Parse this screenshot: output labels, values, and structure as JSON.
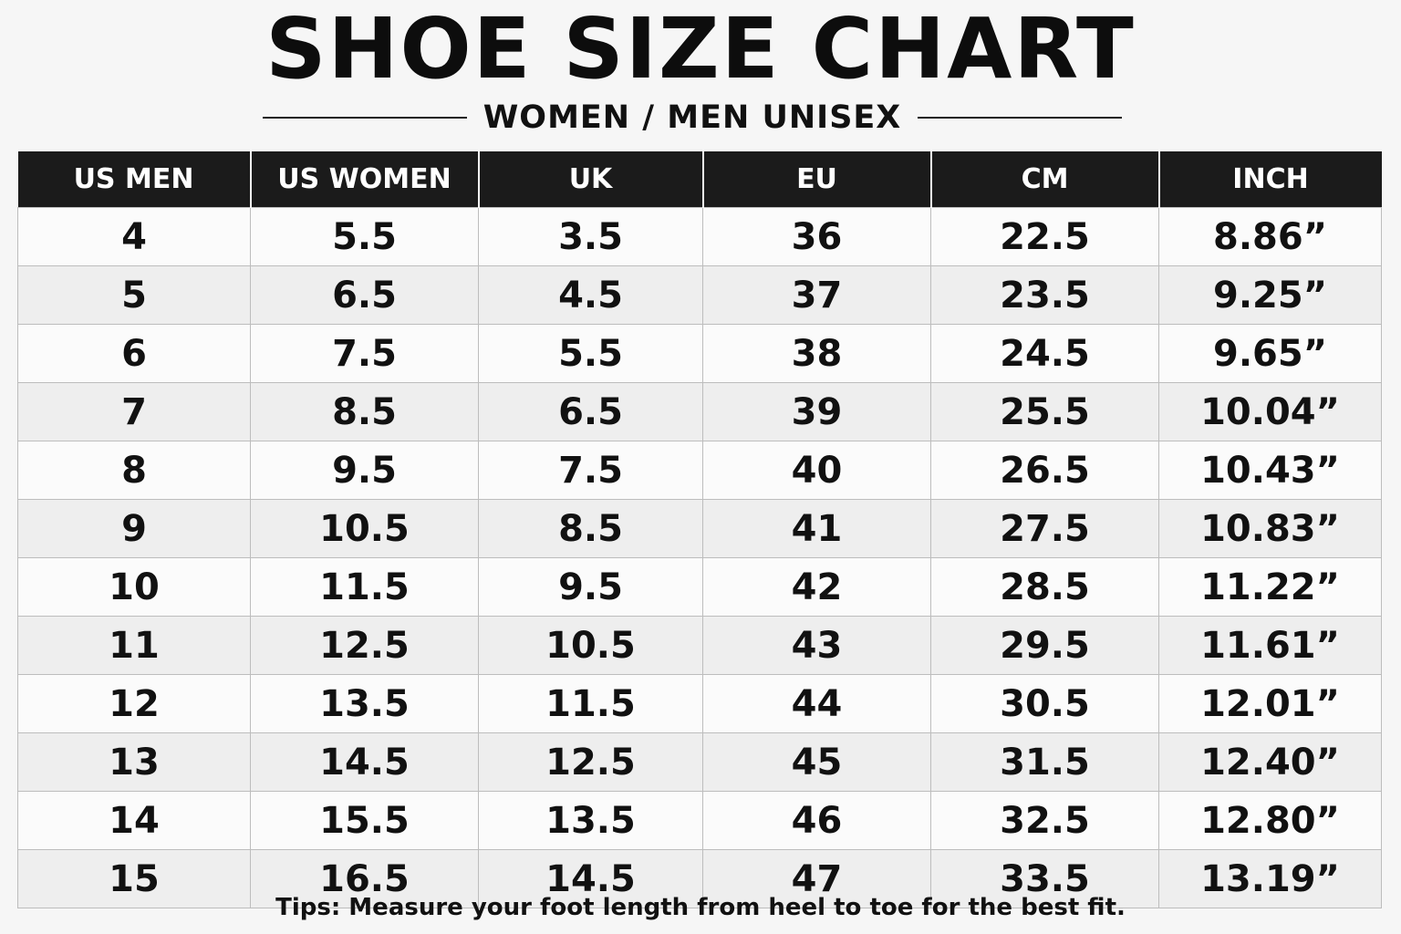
{
  "title": "SHOE SIZE CHART",
  "subtitle": "WOMEN / MEN UNISEX",
  "table": {
    "headers": [
      "US MEN",
      "US WOMEN",
      "UK",
      "EU",
      "CM",
      "INCH"
    ],
    "rows": [
      [
        "4",
        "5.5",
        "3.5",
        "36",
        "22.5",
        "8.86”"
      ],
      [
        "5",
        "6.5",
        "4.5",
        "37",
        "23.5",
        "9.25”"
      ],
      [
        "6",
        "7.5",
        "5.5",
        "38",
        "24.5",
        "9.65”"
      ],
      [
        "7",
        "8.5",
        "6.5",
        "39",
        "25.5",
        "10.04”"
      ],
      [
        "8",
        "9.5",
        "7.5",
        "40",
        "26.5",
        "10.43”"
      ],
      [
        "9",
        "10.5",
        "8.5",
        "41",
        "27.5",
        "10.83”"
      ],
      [
        "10",
        "11.5",
        "9.5",
        "42",
        "28.5",
        "11.22”"
      ],
      [
        "11",
        "12.5",
        "10.5",
        "43",
        "29.5",
        "11.61”"
      ],
      [
        "12",
        "13.5",
        "11.5",
        "44",
        "30.5",
        "12.01”"
      ],
      [
        "13",
        "14.5",
        "12.5",
        "45",
        "31.5",
        "12.40”"
      ],
      [
        "14",
        "15.5",
        "13.5",
        "46",
        "32.5",
        "12.80”"
      ],
      [
        "15",
        "16.5",
        "14.5",
        "47",
        "33.5",
        "13.19”"
      ]
    ]
  },
  "tips": "Tips: Measure your foot length from heel to toe for the best fit.",
  "colors": {
    "header_bg": "#1b1b1b",
    "header_text": "#ffffff",
    "background": "#f6f6f6",
    "row_alt": "#eeeeee"
  }
}
